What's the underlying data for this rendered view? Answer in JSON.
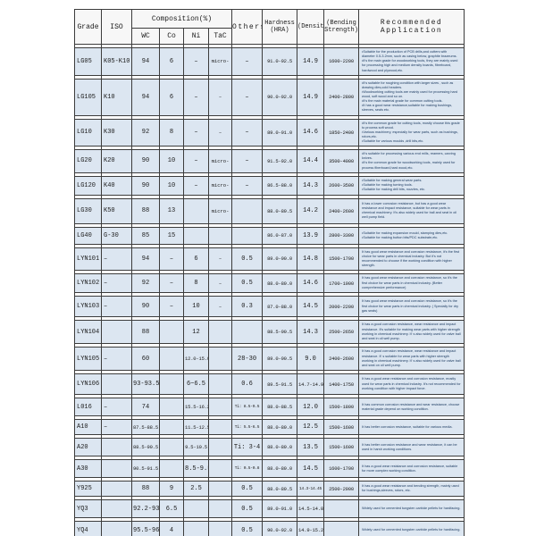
{
  "colors": {
    "cell_bg": "#dce6f1",
    "header_bg": "#f7f7f7",
    "grid": "#3c3c3c",
    "app_text": "#17365d"
  },
  "table": {
    "header": {
      "grade": "Grade",
      "iso": "ISO",
      "composition": "Composition(%)",
      "sub": [
        "WC",
        "Co",
        "Ni",
        "TaC"
      ],
      "others": "Others",
      "hardness_line1": "Hardness",
      "hardness_line2": "(HRA)",
      "density": "(Density)",
      "bending_line1": "(Bending",
      "bending_line2": "Strength)",
      "application_line1": "Recommended",
      "application_line2": "Application"
    },
    "rows": [
      {
        "grade": "LG05",
        "iso": "K05-K10",
        "wc": "94",
        "co": "6",
        "ni": "–",
        "tac": "micro-",
        "others": "–",
        "hra": "91.0-92.5",
        "density": "14.9",
        "bending": "1600-2200",
        "application": [
          "•Suitable for the production of PCB drills,and cutters with diameter 0.5-3.2mm, such as casing below, graphite brazeums.",
          "•It's the main grade for woodworking tools, they are mainly used for processing high and medium density boards, fibreboard, hardwood and plywood,etc."
        ]
      },
      {
        "grade": "LG105",
        "iso": "K10",
        "wc": "94",
        "co": "6",
        "ni": "–",
        "tac": "–",
        "others": "–",
        "hra": "90.0-92.0",
        "density": "14.9",
        "bending": "2400-2800",
        "application": [
          "•It's suitable for roughing condition with larger sizes , such as drawing dies,cold headers.",
          "•Woodworking cutting tools are mainly used for processing hard wood, soft wood and so on.",
          "•It's the main material grade for common cutting tools.",
          "•It has a good wear resistance,suitable for making bushings, sleeves, seals etc."
        ]
      },
      {
        "grade": "LG10",
        "iso": "K30",
        "wc": "92",
        "co": "8",
        "ni": "–",
        "tac": "–",
        "others": "–",
        "hra": "89.0-91.0",
        "density": "14.6",
        "bending": "1850-2400",
        "application": [
          "•It's the common grade for cutting tools, mostly choose this grade to process soft wood.",
          "•Various machinery, especially for wear parts, such as bushings, rotors,etc.",
          "•Suitable for various moulds ,drill bits,etc."
        ]
      },
      {
        "grade": "LG20",
        "iso": "K20",
        "wc": "90",
        "co": "10",
        "ni": "–",
        "tac": "micro-",
        "others": "–",
        "hra": "91.5-92.0",
        "density": "14.4",
        "bending": "3500-4000",
        "application": [
          "•It's suitable for processing various end mills, reamers, carving knives.",
          "•It's the common grade for woodworking tools, mainly used for process fiberboard,hard wood,etc."
        ]
      },
      {
        "grade": "LG120",
        "iso": "K40",
        "wc": "90",
        "co": "10",
        "ni": "–",
        "tac": "micro-",
        "others": "–",
        "hra": "86.5-88.0",
        "density": "14.3",
        "bending": "2600-3500",
        "application": [
          "•Suitable for making general wear parts.",
          "•Suitable for making turning tools.",
          "•Suitable for making drill bits, nozzles, etc."
        ]
      },
      {
        "grade": "LG30",
        "iso": "K50",
        "wc": "88",
        "co": "13",
        "ni": "",
        "tac": "micro-",
        "others": "",
        "hra": "88.0-89.5",
        "density": "14.2",
        "bending": "2400-2600",
        "application": [
          "It has a lower corrosion resistance, but has a good wear resistance and impact resistance, suitable for wear parts in chemical machinery. It's also widely used for ball and seat  in oil well pump field."
        ]
      },
      {
        "grade": "LG40",
        "iso": "G-30",
        "wc": "85",
        "co": "15",
        "ni": "",
        "tac": "",
        "others": "",
        "hra": "86.0-87.0",
        "density": "13.9",
        "bending": "2800-3300",
        "application": [
          "•Suitable for making expansion mould, stamping dies,etc.",
          "•Suitable for making button bits/PDC substrate,etc."
        ]
      },
      {
        "grade": "LYN101",
        "iso": "–",
        "wc": "94",
        "co": "–",
        "ni": "6",
        "tac": "–",
        "others": "0.5",
        "hra": "89.0-90.0",
        "density": "14.8",
        "bending": "1500-1700",
        "application": [
          "It has good wear resistance and corrosion resistance, it's the first choice for wear parts in chemical industry. But it's not recommended to choose if the working condition with higher strength."
        ]
      },
      {
        "grade": "LYN102",
        "iso": "–",
        "wc": "92",
        "co": "–",
        "ni": "8",
        "tac": "–",
        "others": "0.5",
        "hra": "88.0-89.0",
        "density": "14.6",
        "bending": "1700-1900",
        "application": [
          "It has good wear resistance and corrosion resistance, so it's the first choice for wear parts in chemical industry. (Better comprehensive performance)"
        ]
      },
      {
        "grade": "LYN103",
        "iso": "–",
        "wc": "90",
        "co": "–",
        "ni": "10",
        "tac": "–",
        "others": "0.3",
        "hra": "87.0-88.0",
        "density": "14.5",
        "bending": "2000-2200",
        "application": [
          "It has good wear resistance and corrosion resistance, so it's the first choice for wear parts in chemical industry. ( Specially for dry gas seals)"
        ]
      },
      {
        "grade": "LYN104",
        "iso": "",
        "wc": "88",
        "co": "",
        "ni": "12",
        "tac": "",
        "others": "",
        "hra": "88.5-90.5",
        "density": "14.3",
        "bending": "2500-2650",
        "application": [
          "It has a good corrosion resistance, wear resistance and impact resistance. It's suitable for making wear parts with higher strength working in chemical machinery. It' s also widely used for valve ball and seat in oil well pump."
        ]
      },
      {
        "grade": "LYN105",
        "iso": "–",
        "wc": "60",
        "co": "",
        "ni": "12.0-15.0",
        "tac": "",
        "others": "28-30",
        "hra": "89.0-90.5",
        "density": "9.0",
        "bending": "2400-2600",
        "application": [
          "It has a good corrosion resistance, wear resistance and impact resistance. It' s suitable for wear parts  with higher strength working in chemical machinery. It' s also widely used for valve ball and seat on oil well pump."
        ]
      },
      {
        "grade": "LYN106",
        "iso": "",
        "wc": "93-93.5",
        "co": "",
        "ni": "6~6.5",
        "tac": "",
        "others": "0.6",
        "hra": "89.5-91.5",
        "density": "14.7-14.9",
        "bending": "1400-1750",
        "application": [
          "It has a good wear resistance and corrosion resistance, mostly used for wear parts in chemical industry. It's not recommended for working condition with higher impact force."
        ]
      },
      {
        "grade": "L016",
        "iso": "–",
        "wc": "74",
        "co": "",
        "ni": "15.5-16.2",
        "tac": "",
        "others": "Ti: 8.5-9.5",
        "hra": "88.0-88.5",
        "density": "12.0",
        "bending": "1500-1800",
        "application": [
          "It has common corrosion resistance and wear resistance, choose material grade depend on working condition."
        ]
      },
      {
        "grade": "A10",
        "iso": "–",
        "wc": "87.5-88.5",
        "co": "",
        "ni": "11.5-12.5",
        "tac": "",
        "others": "Ti: 5.5-6.5",
        "hra": "88.0-89.0",
        "density": "12.5",
        "bending": "1500-1600",
        "application": [
          "It has better corrosion resistance, suitable for various media."
        ]
      },
      {
        "grade": "A20",
        "iso": "",
        "wc": "88.5-90.5",
        "co": "",
        "ni": "9.5-10.5",
        "tac": "",
        "others": "Ti: 3-4",
        "hra": "88.0-89.0",
        "density": "13.5",
        "bending": "1500-1600",
        "application": [
          "It has better corrosion resistance and wear resistance, it can be used in harsh working conditions."
        ]
      },
      {
        "grade": "A30",
        "iso": "",
        "wc": "90.5-91.5",
        "co": "",
        "ni": "8.5-9.5",
        "tac": "",
        "others": "Ti: 0.5-0.8",
        "hra": "88.0-89.0",
        "density": "14.5",
        "bending": "1600-1700",
        "application": [
          "It has a good wear resistance and corrosion resistance, suitable for more complex working condition."
        ]
      },
      {
        "grade": "Y925",
        "iso": "",
        "wc": "88",
        "co": "9",
        "ni": "2.5",
        "tac": "",
        "others": "0.5",
        "hra": "88.0-89.5",
        "density": "14.3-14.45",
        "bending": "2500-2900",
        "application": [
          "It has a good wear resistance and bending strength, mainly used for bushings,sleeves, rotors, etc."
        ]
      },
      {
        "grade": "YQ3",
        "iso": "",
        "wc": "92.2-93",
        "co": "6.5",
        "ni": "",
        "tac": "",
        "others": "0.5",
        "hra": "89.0-91.0",
        "density": "14.5-14.8",
        "bending": "",
        "application": [
          "Widely used for cemented tungsten carbide pellets for hardfacing."
        ]
      },
      {
        "grade": "YQ4",
        "iso": "",
        "wc": "95.5-96",
        "co": "4",
        "ni": "",
        "tac": "",
        "others": "0.5",
        "hra": "90.0-92.0",
        "density": "14.9-15.2",
        "bending": "",
        "application": [
          "Widely used for cemented tungsten carbide pellets for hardfacing."
        ]
      }
    ]
  }
}
